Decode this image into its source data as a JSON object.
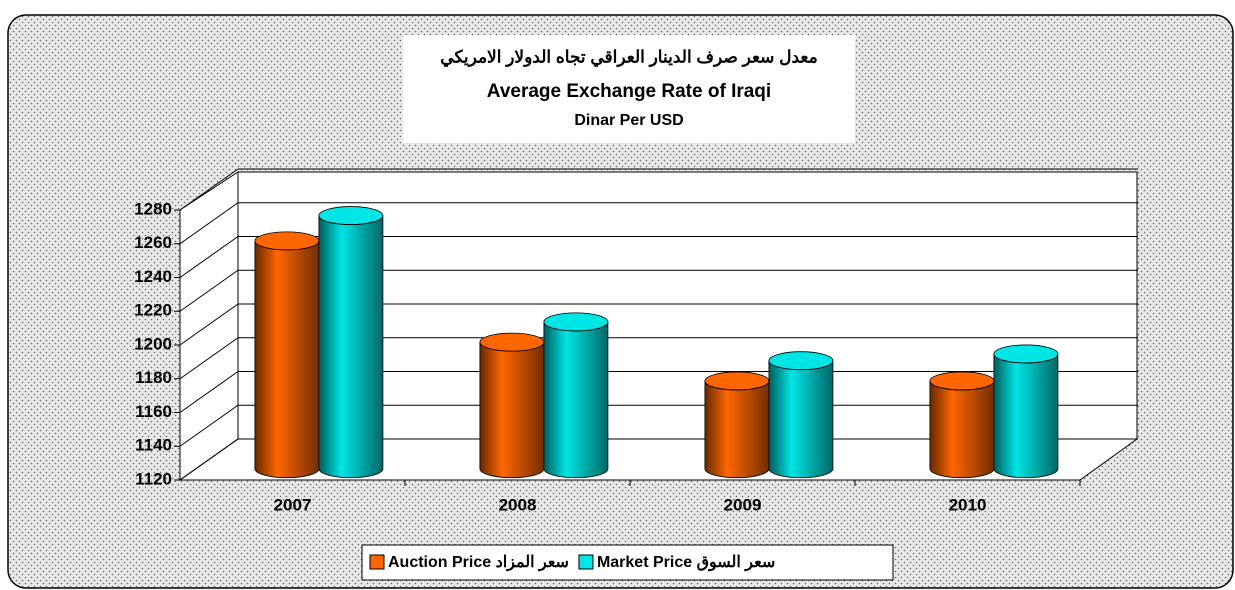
{
  "chart_data": {
    "type": "bar3d",
    "title": [
      "معدل سعر صرف الدينار العراقي تجاه الدولار الامريكي",
      "Average Exchange Rate of Iraqi",
      "Dinar Per USD"
    ],
    "categories": [
      "2007",
      "2008",
      "2009",
      "2010"
    ],
    "series": [
      {
        "name": "Auction Price سعر المزاد",
        "color": "#ff6600",
        "values": [
          1255,
          1195,
          1172,
          1172
        ]
      },
      {
        "name": "Market Price سعر السوق",
        "color": "#00e5e5",
        "values": [
          1270,
          1207,
          1184,
          1188
        ]
      }
    ],
    "ylim": [
      1120,
      1280
    ],
    "yticks": [
      1120,
      1140,
      1160,
      1180,
      1200,
      1220,
      1240,
      1260,
      1280
    ],
    "grid": true,
    "legend": "bottom"
  }
}
